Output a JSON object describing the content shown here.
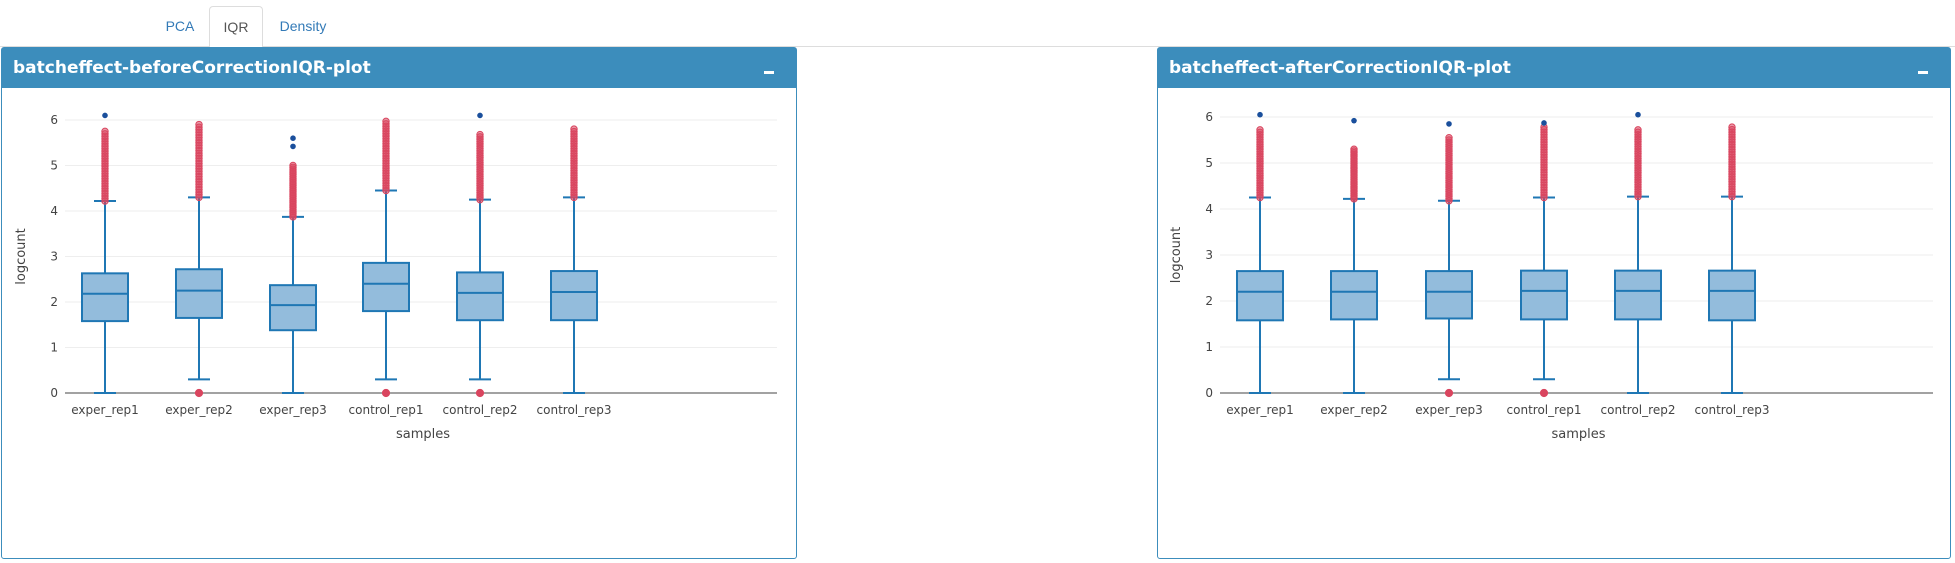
{
  "tabs": [
    "PCA",
    "IQR",
    "Density"
  ],
  "active_tab": "IQR",
  "colors": {
    "header": "#3c8dbc",
    "box_fill": "#93bcdc",
    "box_line": "#1f77b4",
    "outlier": "#d9455f",
    "extreme": "#1a4f9c",
    "tab_link": "#337ab7"
  },
  "panels": [
    {
      "title": "batcheffect-beforeCorrectionIQR-plot",
      "collapse_icon": "minus-icon"
    },
    {
      "title": "batcheffect-afterCorrectionIQR-plot",
      "collapse_icon": "minus-icon"
    }
  ],
  "chart_data": [
    {
      "type": "box",
      "xlabel": "samples",
      "ylabel": "logcount",
      "ylim": [
        0,
        6.4
      ],
      "yticks": [
        0,
        1,
        2,
        3,
        4,
        5,
        6
      ],
      "grid": true,
      "categories": [
        "exper_rep1",
        "exper_rep2",
        "exper_rep3",
        "control_rep1",
        "control_rep2",
        "control_rep3"
      ],
      "boxes": [
        {
          "min": 0,
          "q1": 1.58,
          "median": 2.18,
          "q3": 2.63,
          "max": 4.22,
          "outliers_high": [
            4.22,
            5.75
          ],
          "outliers_low": [],
          "extreme": [
            6.1
          ]
        },
        {
          "min": 0.3,
          "q1": 1.65,
          "median": 2.25,
          "q3": 2.72,
          "max": 4.3,
          "outliers_high": [
            4.3,
            5.9
          ],
          "outliers_low": [
            0
          ],
          "extreme": []
        },
        {
          "min": 0,
          "q1": 1.38,
          "median": 1.93,
          "q3": 2.37,
          "max": 3.87,
          "outliers_high": [
            3.87,
            5.0
          ],
          "outliers_low": [],
          "extreme": [
            5.42,
            5.6
          ]
        },
        {
          "min": 0.3,
          "q1": 1.8,
          "median": 2.4,
          "q3": 2.86,
          "max": 4.45,
          "outliers_high": [
            4.45,
            5.97
          ],
          "outliers_low": [
            0
          ],
          "extreme": []
        },
        {
          "min": 0.3,
          "q1": 1.6,
          "median": 2.2,
          "q3": 2.65,
          "max": 4.25,
          "outliers_high": [
            4.25,
            5.68
          ],
          "outliers_low": [
            0
          ],
          "extreme": [
            6.1
          ]
        },
        {
          "min": 0,
          "q1": 1.6,
          "median": 2.22,
          "q3": 2.68,
          "max": 4.3,
          "outliers_high": [
            4.3,
            5.8
          ],
          "outliers_low": [],
          "extreme": []
        }
      ]
    },
    {
      "type": "box",
      "xlabel": "samples",
      "ylabel": "logcount",
      "ylim": [
        0,
        6.4
      ],
      "yticks": [
        0,
        1,
        2,
        3,
        4,
        5,
        6
      ],
      "grid": true,
      "categories": [
        "exper_rep1",
        "exper_rep2",
        "exper_rep3",
        "control_rep1",
        "control_rep2",
        "control_rep3"
      ],
      "boxes": [
        {
          "min": 0,
          "q1": 1.58,
          "median": 2.2,
          "q3": 2.65,
          "max": 4.25,
          "outliers_high": [
            4.25,
            5.72
          ],
          "outliers_low": [],
          "extreme": [
            6.05
          ]
        },
        {
          "min": 0,
          "q1": 1.6,
          "median": 2.2,
          "q3": 2.65,
          "max": 4.22,
          "outliers_high": [
            4.22,
            5.3
          ],
          "outliers_low": [],
          "extreme": [
            5.92
          ]
        },
        {
          "min": 0.3,
          "q1": 1.62,
          "median": 2.2,
          "q3": 2.65,
          "max": 4.18,
          "outliers_high": [
            4.18,
            5.55
          ],
          "outliers_low": [
            0
          ],
          "extreme": [
            5.85
          ]
        },
        {
          "min": 0.3,
          "q1": 1.6,
          "median": 2.22,
          "q3": 2.66,
          "max": 4.25,
          "outliers_high": [
            4.25,
            5.78
          ],
          "outliers_low": [
            0
          ],
          "extreme": [
            5.87
          ]
        },
        {
          "min": 0,
          "q1": 1.6,
          "median": 2.22,
          "q3": 2.66,
          "max": 4.27,
          "outliers_high": [
            4.27,
            5.72
          ],
          "outliers_low": [],
          "extreme": [
            6.05
          ]
        },
        {
          "min": 0,
          "q1": 1.58,
          "median": 2.22,
          "q3": 2.66,
          "max": 4.27,
          "outliers_high": [
            4.27,
            5.78
          ],
          "outliers_low": [],
          "extreme": []
        }
      ]
    }
  ]
}
